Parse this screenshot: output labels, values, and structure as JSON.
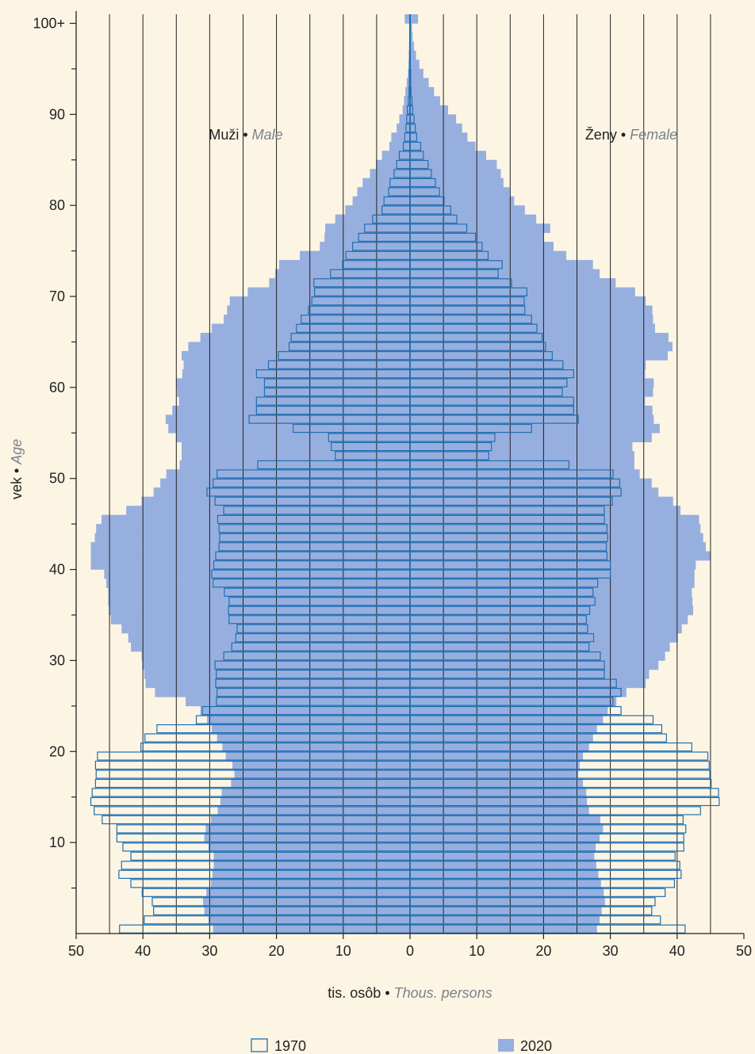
{
  "chart_data": {
    "type": "population-pyramid",
    "xlabel": {
      "sk": "tis. osôb",
      "sep": " • ",
      "en": "Thous. persons"
    },
    "ylabel": {
      "sk": "vek",
      "sep": " • ",
      "en": "Age"
    },
    "left_label": {
      "sk": "Muži",
      "sep": " • ",
      "en": "Male"
    },
    "right_label": {
      "sk": "Ženy",
      "sep": " • ",
      "en": "Female"
    },
    "x_ticks_left": [
      "50",
      "40",
      "30",
      "20",
      "10",
      "0"
    ],
    "x_ticks_right": [
      "10",
      "20",
      "30",
      "40",
      "50"
    ],
    "x_tick_values": [
      -50,
      -40,
      -30,
      -20,
      -10,
      0,
      10,
      20,
      30,
      40,
      50
    ],
    "y_ticks": [
      "10",
      "20",
      "30",
      "40",
      "50",
      "60",
      "70",
      "80",
      "90",
      "100+"
    ],
    "y_tick_values": [
      10,
      20,
      30,
      40,
      50,
      60,
      70,
      80,
      90,
      100
    ],
    "xlim": [
      -50,
      50
    ],
    "ylim": [
      0,
      101
    ],
    "vertical_gridlines_every": 5,
    "legend": [
      {
        "name": "1970",
        "style": "outline"
      },
      {
        "name": "2020",
        "style": "filled"
      }
    ],
    "legend_placement": "bottom",
    "colors": {
      "outline": "#1f6fb2",
      "fill": "#97afdf",
      "background": "#fdf5e3",
      "grid": "#222222"
    },
    "ages": [
      0,
      1,
      2,
      3,
      4,
      5,
      6,
      7,
      8,
      9,
      10,
      11,
      12,
      13,
      14,
      15,
      16,
      17,
      18,
      19,
      20,
      21,
      22,
      23,
      24,
      25,
      26,
      27,
      28,
      29,
      30,
      31,
      32,
      33,
      34,
      35,
      36,
      37,
      38,
      39,
      40,
      41,
      42,
      43,
      44,
      45,
      46,
      47,
      48,
      49,
      50,
      51,
      52,
      53,
      54,
      55,
      56,
      57,
      58,
      59,
      60,
      61,
      62,
      63,
      64,
      65,
      66,
      67,
      68,
      69,
      70,
      71,
      72,
      73,
      74,
      75,
      76,
      77,
      78,
      79,
      80,
      81,
      82,
      83,
      84,
      85,
      86,
      87,
      88,
      89,
      90,
      91,
      92,
      93,
      94,
      95,
      96,
      97,
      98,
      99,
      100
    ],
    "series": [
      {
        "name": "2020",
        "male": [
          29.5,
          30.2,
          30.8,
          31,
          30.5,
          29.8,
          29.6,
          29.4,
          29.4,
          30.2,
          30.8,
          30.6,
          29.8,
          28.8,
          28.4,
          28.2,
          26.8,
          26.3,
          26.6,
          27.6,
          28.1,
          28.9,
          29.7,
          30.4,
          31.4,
          33.6,
          38.2,
          39.6,
          39.8,
          40.1,
          40.2,
          41.8,
          42.2,
          43.2,
          44.8,
          45.1,
          45.2,
          45.2,
          45.5,
          45.8,
          47.8,
          47.8,
          47.8,
          47.2,
          47.0,
          46.2,
          42.5,
          40.2,
          38.4,
          37.4,
          36.5,
          34.5,
          34.2,
          34.2,
          35.0,
          36.2,
          36.6,
          35.6,
          34.6,
          34.9,
          35.0,
          34.1,
          33.9,
          34.2,
          33.2,
          31.4,
          29.7,
          27.9,
          27.4,
          27.0,
          24.3,
          21.1,
          20.2,
          19.6,
          16.5,
          13.5,
          12.8,
          12.7,
          11.2,
          9.7,
          8.6,
          7.9,
          7.1,
          6.0,
          5.1,
          4.2,
          3.1,
          2.8,
          2.0,
          1.6,
          1.1,
          0.9,
          0.7,
          0.5,
          0.3,
          0.25,
          0.2,
          0.15,
          0.1,
          0.1,
          0.8
        ],
        "female": [
          28.0,
          28.4,
          28.7,
          29.2,
          29.0,
          28.6,
          28.2,
          27.9,
          27.6,
          27.8,
          28.4,
          28.9,
          28.5,
          26.8,
          26.5,
          26.4,
          25.9,
          25.2,
          25.4,
          25.9,
          26.8,
          27.4,
          28.0,
          28.9,
          29.6,
          30.9,
          32.4,
          35.3,
          35.8,
          37.2,
          38.2,
          38.9,
          40.1,
          40.7,
          41.6,
          42.4,
          42.3,
          42.2,
          42.6,
          42.6,
          42.8,
          45.0,
          44.3,
          43.9,
          43.5,
          43.3,
          40.5,
          39.4,
          37.2,
          36.2,
          34.4,
          33.6,
          33.6,
          33.3,
          36.2,
          37.4,
          36.5,
          36.3,
          35.2,
          36.4,
          36.5,
          35.2,
          35.3,
          38.6,
          39.3,
          38.7,
          36.7,
          36.4,
          36.3,
          35.3,
          33.7,
          30.8,
          28.4,
          27.4,
          23.4,
          21.5,
          20.0,
          21.0,
          18.9,
          17.2,
          15.6,
          14.9,
          14.0,
          13.6,
          13.0,
          11.4,
          9.8,
          8.6,
          7.8,
          6.9,
          5.7,
          4.5,
          3.6,
          2.8,
          2.0,
          1.4,
          0.9,
          0.6,
          0.4,
          0.3,
          1.2
        ]
      },
      {
        "name": "1970",
        "male": [
          43.5,
          39.8,
          38.4,
          38.6,
          40.1,
          41.8,
          43.6,
          43.2,
          41.8,
          43.0,
          43.9,
          43.9,
          46.1,
          47.3,
          47.8,
          47.6,
          47.1,
          47.0,
          47.1,
          46.8,
          40.3,
          39.7,
          37.9,
          32.0,
          31.1,
          29.0,
          28.9,
          29.1,
          29.0,
          29.2,
          27.9,
          26.7,
          26.1,
          25.9,
          27.1,
          27.2,
          27.1,
          27.8,
          29.5,
          29.7,
          29.4,
          29.1,
          28.6,
          28.5,
          28.6,
          28.8,
          27.9,
          29.2,
          30.4,
          29.5,
          28.9,
          22.8,
          11.2,
          11.8,
          12.2,
          17.5,
          24.1,
          23.0,
          23.0,
          21.8,
          21.8,
          23.0,
          21.2,
          19.7,
          18.1,
          17.8,
          17.0,
          16.3,
          15.2,
          14.7,
          14.3,
          14.4,
          11.9,
          10.1,
          9.6,
          8.6,
          7.7,
          6.8,
          5.6,
          4.2,
          3.9,
          3.2,
          3.0,
          2.4,
          2.0,
          1.6,
          1.0,
          0.8,
          0.6,
          0.5,
          0.4,
          0.25,
          0.15,
          0.1,
          0.1,
          0.05,
          0.05,
          0.05,
          0.05,
          0.05,
          0.05
        ],
        "female": [
          41.2,
          37.5,
          36.2,
          36.7,
          38.2,
          39.6,
          40.6,
          40.4,
          39.7,
          41.0,
          41.0,
          41.3,
          40.9,
          43.5,
          46.3,
          46.2,
          45.1,
          44.9,
          44.8,
          44.6,
          42.2,
          38.4,
          37.7,
          36.4,
          31.6,
          30.4,
          31.6,
          30.9,
          29.1,
          29.1,
          28.5,
          26.8,
          27.5,
          26.6,
          26.4,
          26.9,
          27.7,
          27.4,
          28.1,
          30.0,
          30.0,
          29.5,
          29.4,
          29.6,
          29.5,
          29.1,
          29.1,
          30.3,
          31.6,
          31.4,
          30.4,
          23.8,
          11.8,
          12.2,
          12.7,
          18.2,
          25.2,
          24.5,
          24.5,
          22.8,
          23.5,
          24.5,
          22.9,
          21.3,
          20.3,
          19.8,
          19.0,
          18.2,
          17.2,
          17.1,
          17.5,
          15.2,
          13.2,
          13.8,
          11.7,
          10.8,
          9.8,
          8.5,
          7.0,
          6.1,
          5.1,
          4.4,
          3.8,
          3.2,
          2.7,
          2.0,
          1.6,
          1.0,
          0.8,
          0.6,
          0.4,
          0.3,
          0.15,
          0.1,
          0.1,
          0.05,
          0.05,
          0.05,
          0.05,
          0.05,
          0.05
        ]
      }
    ]
  }
}
